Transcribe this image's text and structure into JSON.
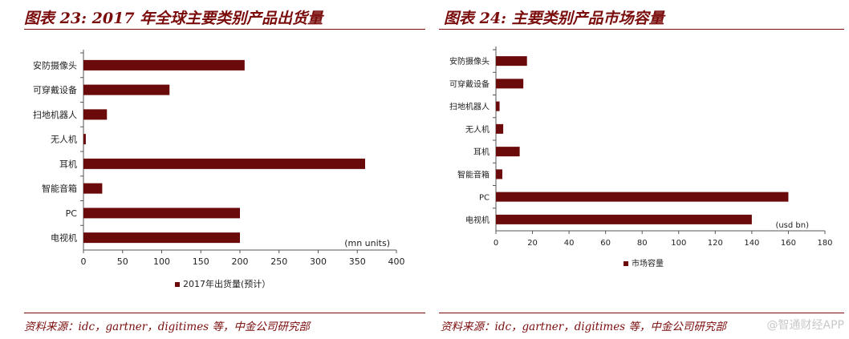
{
  "left": {
    "title": "图表 23: 2017 年全球主要类别产品出货量",
    "source": "资料来源：idc，gartner，digitimes 等，中金公司研究部",
    "chart_data": {
      "type": "bar",
      "orientation": "horizontal",
      "categories": [
        "安防摄像头",
        "可穿戴设备",
        "扫地机器人",
        "无人机",
        "耳机",
        "智能音箱",
        "PC",
        "电视机"
      ],
      "series": [
        {
          "name": "2017年出货量(预计）",
          "values": [
            206,
            110,
            30,
            3,
            360,
            24,
            200,
            200
          ]
        }
      ],
      "unit_label": "(mn units)",
      "xlim": [
        0,
        400
      ],
      "xticks": [
        0,
        50,
        100,
        150,
        200,
        250,
        300,
        350,
        400
      ],
      "grid": false,
      "legend": "bottom",
      "color": "#6b0a0a"
    }
  },
  "right": {
    "title": "图表 24:  主要类别产品市场容量",
    "source": "资料来源：idc，gartner，digitimes 等，中金公司研究部",
    "chart_data": {
      "type": "bar",
      "orientation": "horizontal",
      "categories": [
        "安防摄像头",
        "可穿戴设备",
        "扫地机器人",
        "无人机",
        "耳机",
        "智能音箱",
        "PC",
        "电视机"
      ],
      "series": [
        {
          "name": "市场容量",
          "values": [
            17,
            15,
            2,
            4,
            13,
            3.5,
            160,
            140
          ]
        }
      ],
      "unit_label": "(usd bn)",
      "xlim": [
        0,
        180
      ],
      "xticks": [
        0,
        20,
        40,
        60,
        80,
        100,
        120,
        140,
        160,
        180
      ],
      "grid": false,
      "legend": "bottom",
      "color": "#6b0a0a"
    }
  },
  "watermark": "@智通财经APP"
}
